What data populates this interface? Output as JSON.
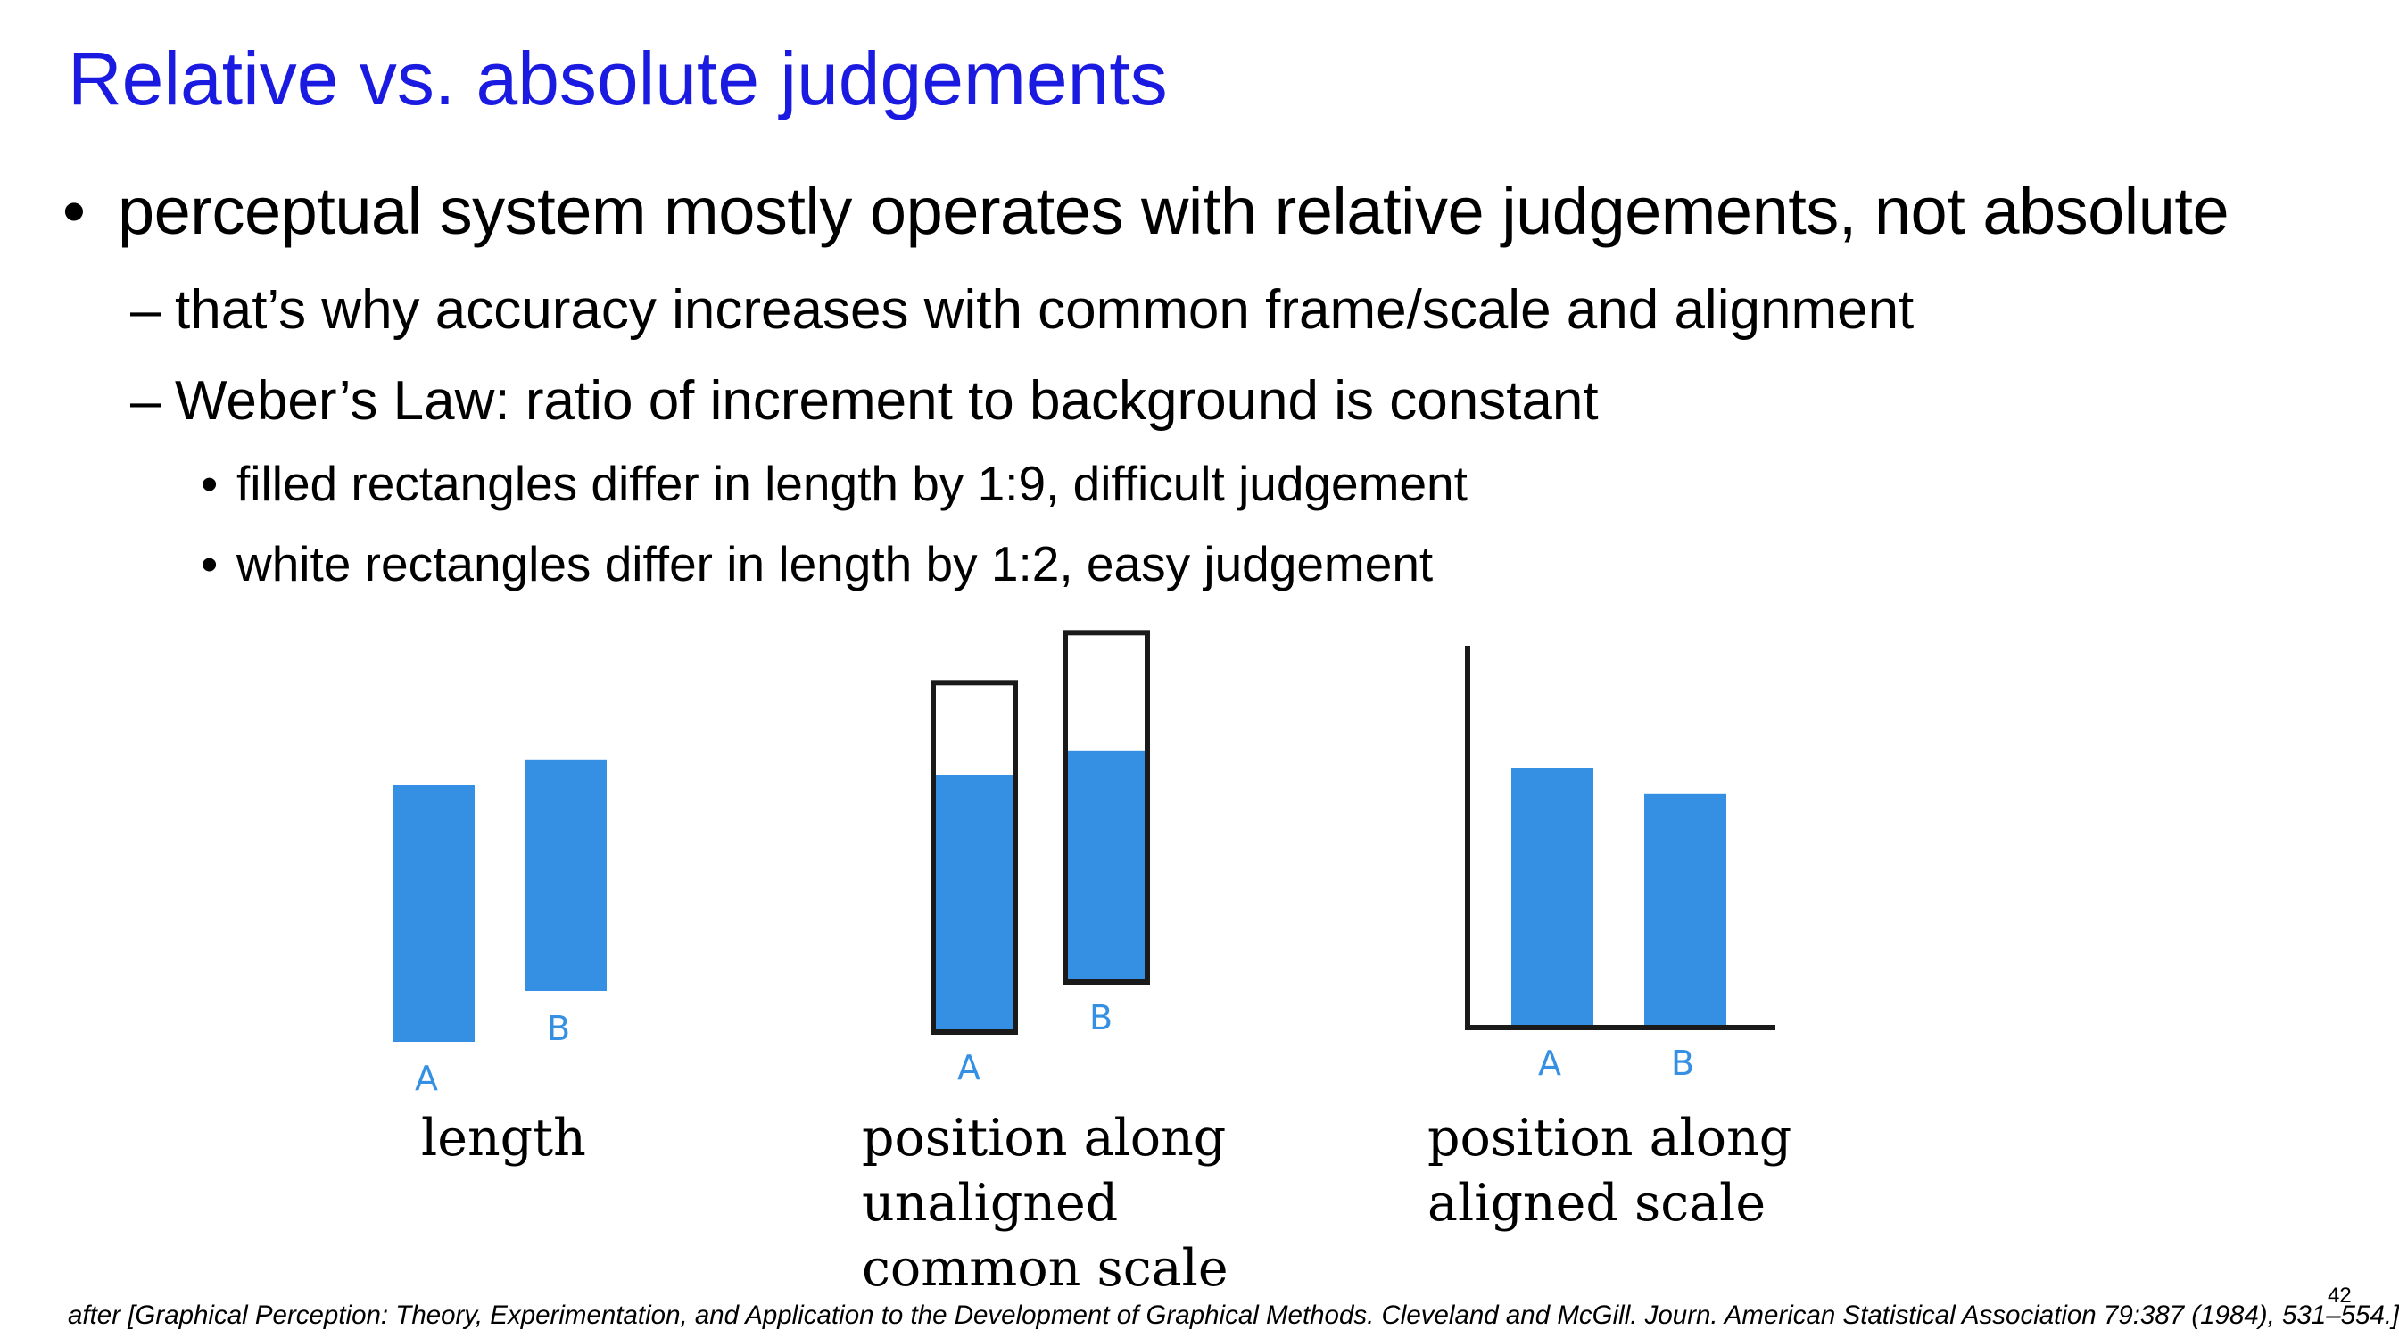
{
  "slide": {
    "title": "Relative vs. absolute judgements",
    "bullets": [
      {
        "level": 1,
        "marker": "•",
        "text": "perceptual system mostly operates with relative judgements, not absolute"
      },
      {
        "level": 2,
        "marker": "–",
        "text": "that’s why accuracy increases with common frame/scale and alignment"
      },
      {
        "level": 2,
        "marker": "–",
        "text": "Weber’s Law: ratio of increment to background is constant"
      },
      {
        "level": 3,
        "marker": "•",
        "text": "filled rectangles differ in length by 1:9, difficult judgement"
      },
      {
        "level": 3,
        "marker": "•",
        "text": "white rectangles differ in length by 1:2, easy judgement"
      }
    ],
    "footer": "after [Graphical Perception: Theory, Experimentation, and Application to the Development of Graphical Methods. Cleveland and McGill. Journ.  American Statistical Association 79:387 (1984), 531–554.]",
    "page_number": "42"
  },
  "figure": {
    "colors": {
      "bar_fill": "#3590e3",
      "frame_stroke": "#1a1a1a",
      "bar_label": "#3590e3",
      "title": "#1a1ae0"
    },
    "panels": [
      {
        "id": "length",
        "caption_lines": [
          "length"
        ],
        "bars": [
          {
            "label": "A",
            "value": 100
          },
          {
            "label": "B",
            "value": 90
          }
        ]
      },
      {
        "id": "unaligned",
        "caption_lines": [
          "position along",
          "unaligned",
          "common scale"
        ],
        "bars": [
          {
            "label": "A",
            "value": 100,
            "frame": 136
          },
          {
            "label": "B",
            "value": 90,
            "frame": 136
          }
        ]
      },
      {
        "id": "aligned",
        "caption_lines": [
          "position along",
          "aligned scale"
        ],
        "bars": [
          {
            "label": "A",
            "value": 100
          },
          {
            "label": "B",
            "value": 90
          }
        ]
      }
    ]
  }
}
